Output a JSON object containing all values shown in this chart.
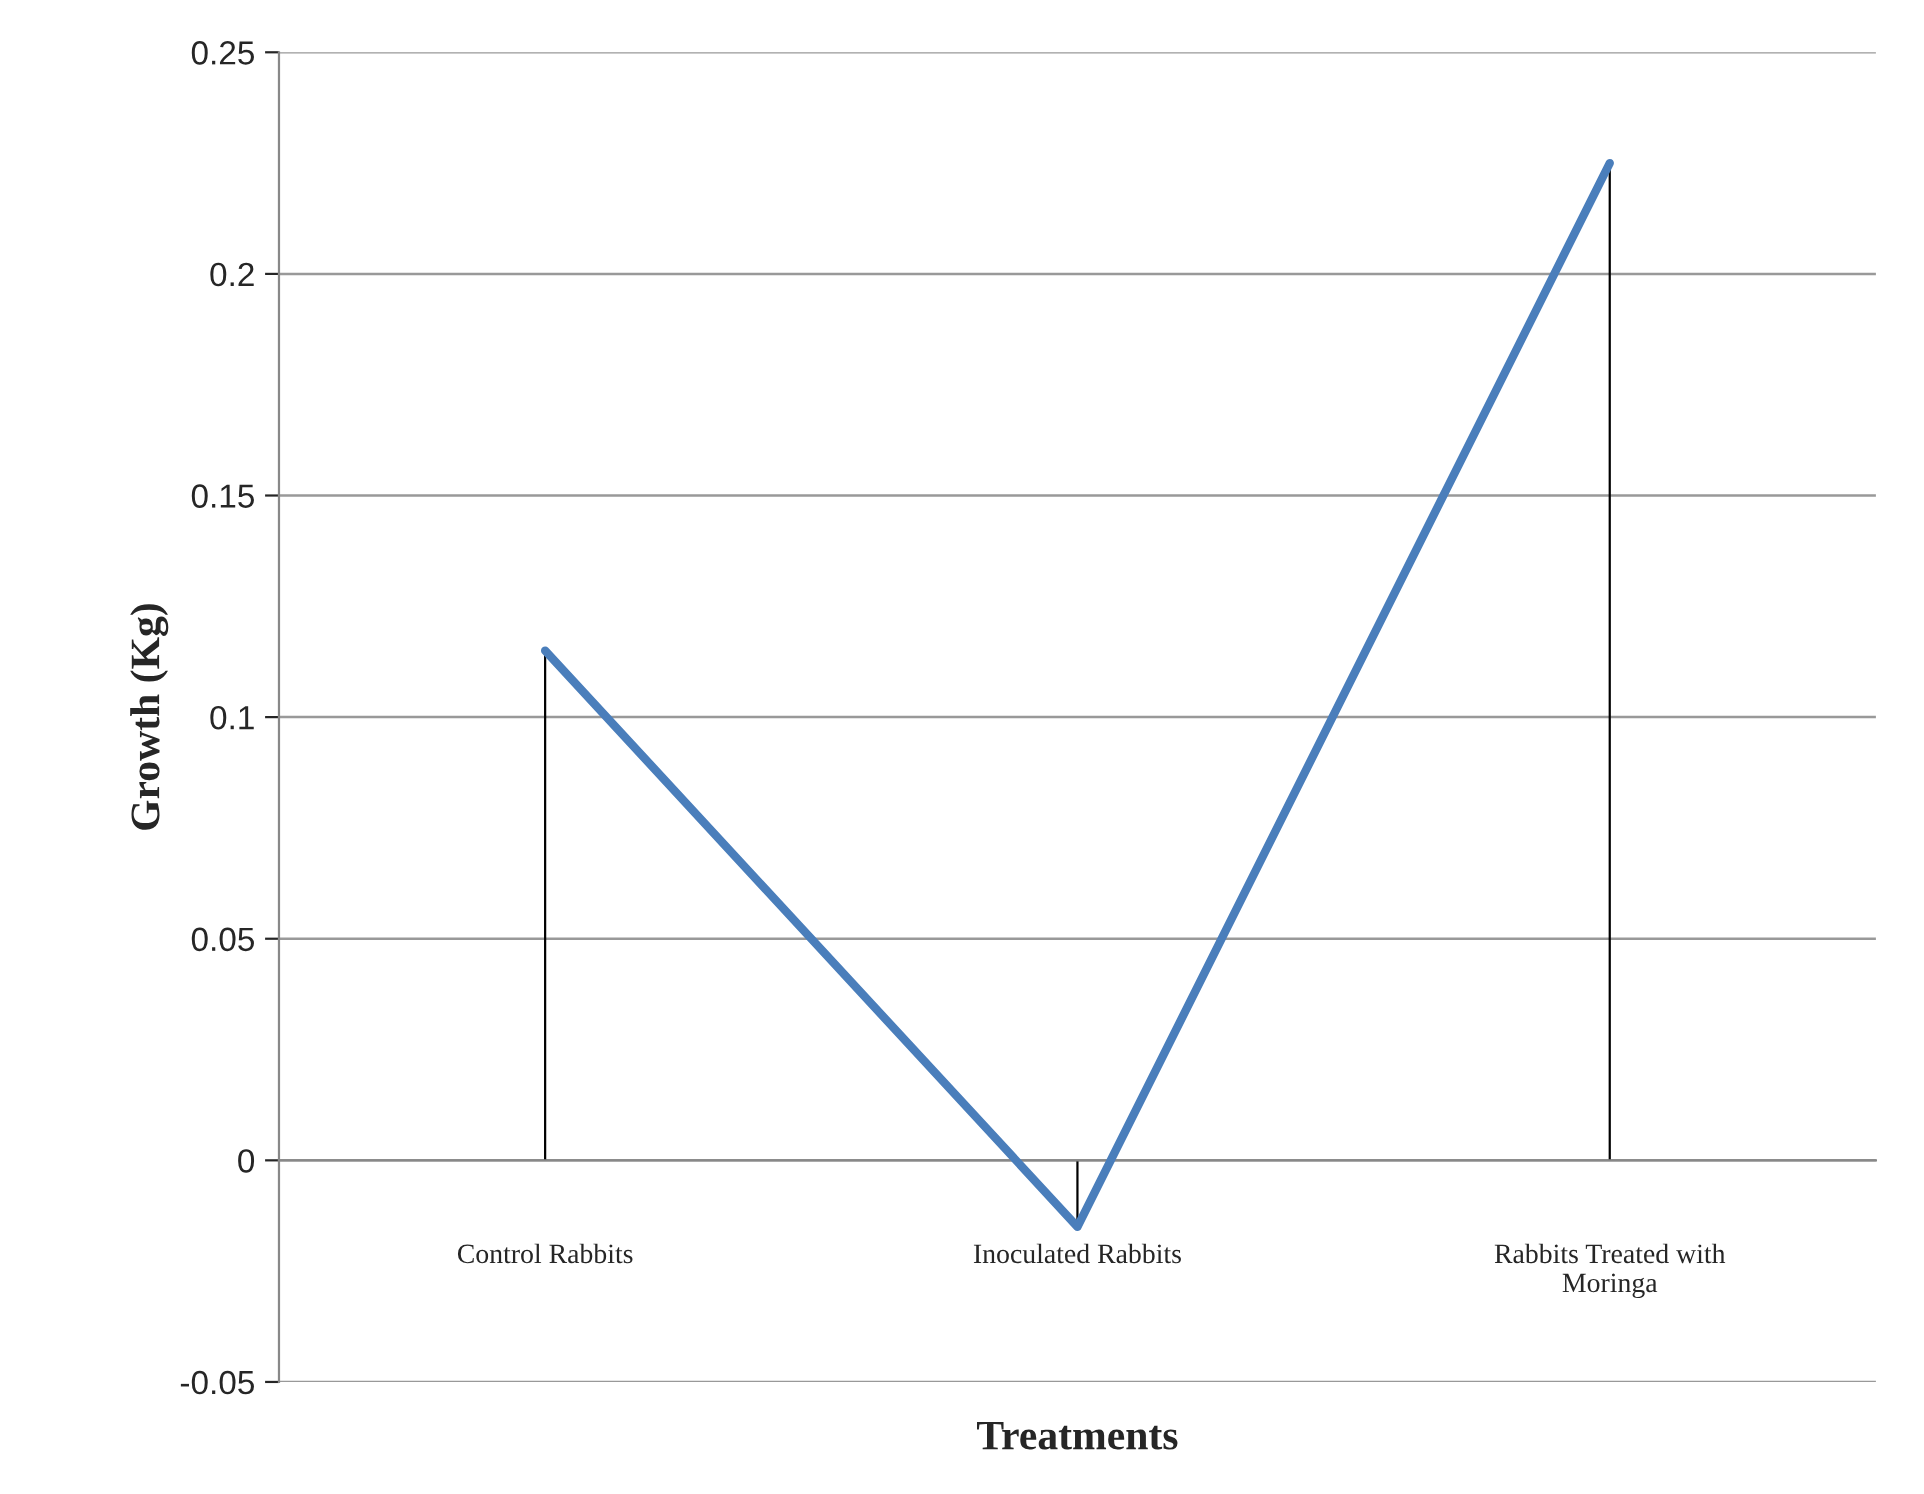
{
  "chart_data": {
    "type": "line",
    "xlabel": "Treatments",
    "ylabel": "Growth (Kg)",
    "categories": [
      "Control Rabbits",
      "Inoculated Rabbits",
      "Rabbits Treated with Moringa"
    ],
    "series": [
      {
        "color": "#4a7ebb",
        "values": [
          0.115,
          -0.015,
          0.225
        ],
        "errors": [
          [
            0,
            0.115
          ],
          [
            -0.015,
            0
          ],
          [
            0,
            0.225
          ]
        ]
      }
    ],
    "ylim": [
      -0.05,
      0.25
    ],
    "yticks": [
      -0.05,
      0,
      0.05,
      0.1,
      0.15,
      0.2,
      0.25
    ],
    "grid": "y",
    "marker": "none",
    "line_style": "solid"
  }
}
